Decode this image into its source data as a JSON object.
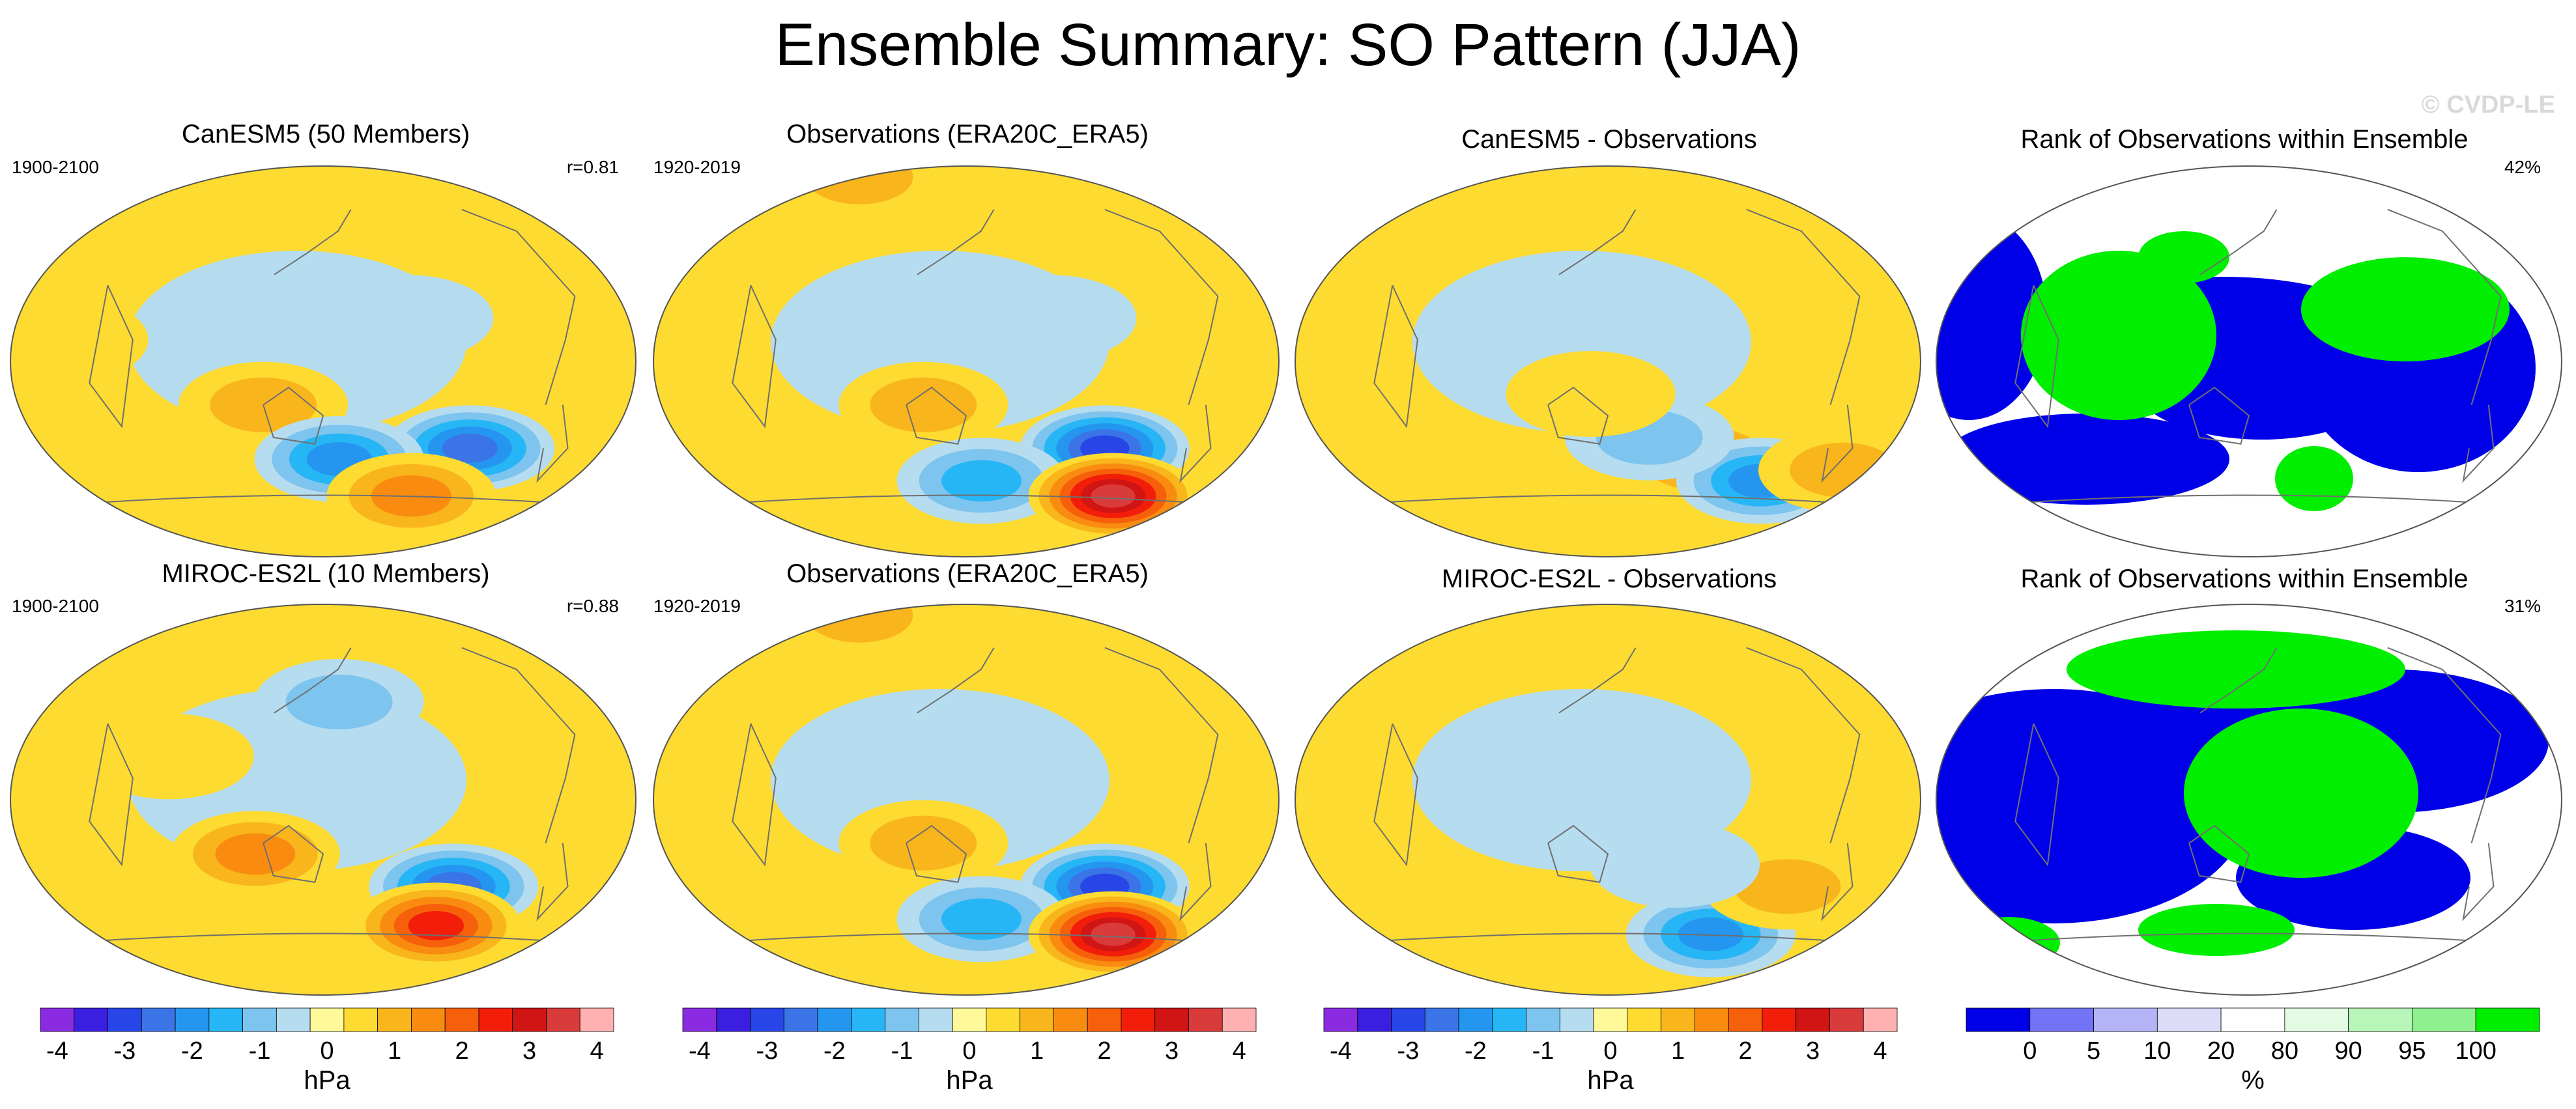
{
  "title": "Ensemble Summary: SO Pattern (JJA)",
  "watermark": "© CVDP-LE",
  "colors": {
    "map_palette": [
      "#8a2be2",
      "#3b1fe0",
      "#2846e8",
      "#3a74e6",
      "#2596f0",
      "#27b6f5",
      "#7dc4ee",
      "#b6dcf0",
      "#fff999",
      "#fddb30",
      "#f9b51c",
      "#f98c10",
      "#f6600a",
      "#f21e0a",
      "#d11414",
      "#d93b3b",
      "#ffb0b0"
    ],
    "rank_palette": [
      "#0000e8",
      "#7373f5",
      "#b3b3f5",
      "#dcdcf8",
      "#ffffff",
      "#e3fae3",
      "#b8f5b8",
      "#8ff08f",
      "#00ee00"
    ],
    "land_outline": "#6f6f6f"
  },
  "rows": [
    {
      "panels": [
        {
          "title": "CanESM5 (50 Members)",
          "left_label": "1900-2100",
          "right_label": "r=0.81"
        },
        {
          "title": "Observations (ERA20C_ERA5)",
          "left_label": "1920-2019",
          "right_label": ""
        },
        {
          "title": "CanESM5 - Observations",
          "left_label": "",
          "right_label": ""
        },
        {
          "title": "Rank of Observations within Ensemble",
          "left_label": "",
          "right_label": "42%"
        }
      ]
    },
    {
      "panels": [
        {
          "title": "MIROC-ES2L (10 Members)",
          "left_label": "1900-2100",
          "right_label": "r=0.88"
        },
        {
          "title": "Observations (ERA20C_ERA5)",
          "left_label": "1920-2019",
          "right_label": ""
        },
        {
          "title": "MIROC-ES2L - Observations",
          "left_label": "",
          "right_label": ""
        },
        {
          "title": "Rank of Observations within Ensemble",
          "left_label": "",
          "right_label": "31%"
        }
      ]
    }
  ],
  "chart_data": [
    {
      "type": "heatmap",
      "title": "CanESM5 (50 Members)",
      "period": "1900-2100",
      "pattern_correlation": 0.81,
      "units": "hPa",
      "levels": [
        -4,
        -3.5,
        -3,
        -2.5,
        -2,
        -1.5,
        -1,
        -0.5,
        0,
        0.5,
        1,
        1.5,
        2,
        2.5,
        3,
        3.5,
        4
      ],
      "blobs": [
        {
          "lon": -120,
          "lat": -40,
          "value": -2.5
        },
        {
          "lon": 115,
          "lat": -20,
          "value": 1.0
        },
        {
          "lon": 160,
          "lat": -45,
          "value": -2.0
        },
        {
          "lon": -150,
          "lat": -62,
          "value": 1.5
        },
        {
          "lon": 0,
          "lat": 10,
          "value": 0.5
        },
        {
          "lon": -160,
          "lat": 20,
          "value": -0.5
        }
      ]
    },
    {
      "type": "heatmap",
      "title": "Observations (ERA20C_ERA5)",
      "period": "1920-2019",
      "units": "hPa",
      "levels": [
        -4,
        -3.5,
        -3,
        -2.5,
        -2,
        -1.5,
        -1,
        -0.5,
        0,
        0.5,
        1,
        1.5,
        2,
        2.5,
        3,
        3.5,
        4
      ],
      "blobs": [
        {
          "lon": -125,
          "lat": -40,
          "value": -2.8
        },
        {
          "lon": 125,
          "lat": -20,
          "value": 1.0
        },
        {
          "lon": 160,
          "lat": -55,
          "value": -1.5
        },
        {
          "lon": -110,
          "lat": -62,
          "value": 3.5
        },
        {
          "lon": 60,
          "lat": 85,
          "value": 1.0
        },
        {
          "lon": -160,
          "lat": 20,
          "value": -0.5
        }
      ]
    },
    {
      "type": "heatmap",
      "title": "CanESM5 - Observations",
      "units": "hPa",
      "levels": [
        -4,
        -3.5,
        -3,
        -2.5,
        -2,
        -1.5,
        -1,
        -0.5,
        0,
        0.5,
        1,
        1.5,
        2,
        2.5,
        3,
        3.5,
        4
      ],
      "blobs": [
        {
          "lon": -150,
          "lat": -45,
          "value": 1.5
        },
        {
          "lon": -110,
          "lat": -55,
          "value": -2.0
        },
        {
          "lon": 175,
          "lat": -35,
          "value": -1.0
        },
        {
          "lon": -60,
          "lat": -50,
          "value": 1.0
        },
        {
          "lon": 140,
          "lat": -15,
          "value": 0.5
        }
      ]
    },
    {
      "type": "heatmap",
      "title": "Rank of Observations within Ensemble",
      "units": "%",
      "percent_within": 42,
      "levels": [
        0,
        5,
        10,
        20,
        80,
        90,
        95,
        100
      ]
    },
    {
      "type": "heatmap",
      "title": "MIROC-ES2L (10 Members)",
      "period": "1900-2100",
      "pattern_correlation": 0.88,
      "units": "hPa",
      "levels": [
        -4,
        -3.5,
        -3,
        -2.5,
        -2,
        -1.5,
        -1,
        -0.5,
        0,
        0.5,
        1,
        1.5,
        2,
        2.5,
        3,
        3.5,
        4
      ],
      "blobs": [
        {
          "lon": -130,
          "lat": -40,
          "value": -2.5
        },
        {
          "lon": 110,
          "lat": -25,
          "value": 1.3
        },
        {
          "lon": -135,
          "lat": -58,
          "value": 2.5
        },
        {
          "lon": 160,
          "lat": 45,
          "value": -0.8
        },
        {
          "lon": 60,
          "lat": 20,
          "value": 0.6
        }
      ]
    },
    {
      "type": "heatmap",
      "title": "Observations (ERA20C_ERA5)",
      "period": "1920-2019",
      "units": "hPa",
      "levels": [
        -4,
        -3.5,
        -3,
        -2.5,
        -2,
        -1.5,
        -1,
        -0.5,
        0,
        0.5,
        1,
        1.5,
        2,
        2.5,
        3,
        3.5,
        4
      ],
      "blobs": [
        {
          "lon": -125,
          "lat": -40,
          "value": -2.8
        },
        {
          "lon": 125,
          "lat": -20,
          "value": 1.0
        },
        {
          "lon": 160,
          "lat": -55,
          "value": -1.5
        },
        {
          "lon": -110,
          "lat": -62,
          "value": 3.5
        },
        {
          "lon": 60,
          "lat": 85,
          "value": 1.0
        }
      ]
    },
    {
      "type": "heatmap",
      "title": "MIROC-ES2L - Observations",
      "units": "hPa",
      "levels": [
        -4,
        -3.5,
        -3,
        -2.5,
        -2,
        -1.5,
        -1,
        -0.5,
        0,
        0.5,
        1,
        1.5,
        2,
        2.5,
        3,
        3.5,
        4
      ],
      "blobs": [
        {
          "lon": -140,
          "lat": -62,
          "value": -1.8
        },
        {
          "lon": -100,
          "lat": -40,
          "value": 0.8
        },
        {
          "lon": -170,
          "lat": -30,
          "value": -0.6
        }
      ]
    },
    {
      "type": "heatmap",
      "title": "Rank of Observations within Ensemble",
      "units": "%",
      "percent_within": 31,
      "levels": [
        0,
        5,
        10,
        20,
        80,
        90,
        95,
        100
      ]
    }
  ],
  "colorbars": [
    {
      "unit": "hPa",
      "tick_labels": [
        "-4",
        "-3",
        "-2",
        "-1",
        "0",
        "1",
        "2",
        "3",
        "4"
      ],
      "tick_values": [
        -4,
        -3,
        -2,
        -1,
        0,
        1,
        2,
        3,
        4
      ],
      "range": [
        -4,
        4
      ]
    },
    {
      "unit": "hPa",
      "tick_labels": [
        "-4",
        "-3",
        "-2",
        "-1",
        "0",
        "1",
        "2",
        "3",
        "4"
      ],
      "tick_values": [
        -4,
        -3,
        -2,
        -1,
        0,
        1,
        2,
        3,
        4
      ],
      "range": [
        -4,
        4
      ]
    },
    {
      "unit": "hPa",
      "tick_labels": [
        "-4",
        "-3",
        "-2",
        "-1",
        "0",
        "1",
        "2",
        "3",
        "4"
      ],
      "tick_values": [
        -4,
        -3,
        -2,
        -1,
        0,
        1,
        2,
        3,
        4
      ],
      "range": [
        -4,
        4
      ]
    },
    {
      "unit": "%",
      "tick_labels": [
        "0",
        "5",
        "10",
        "20",
        "80",
        "90",
        "95",
        "100"
      ],
      "tick_values": [
        0,
        5,
        10,
        20,
        80,
        90,
        95,
        100
      ],
      "range": [
        0,
        100
      ]
    }
  ]
}
